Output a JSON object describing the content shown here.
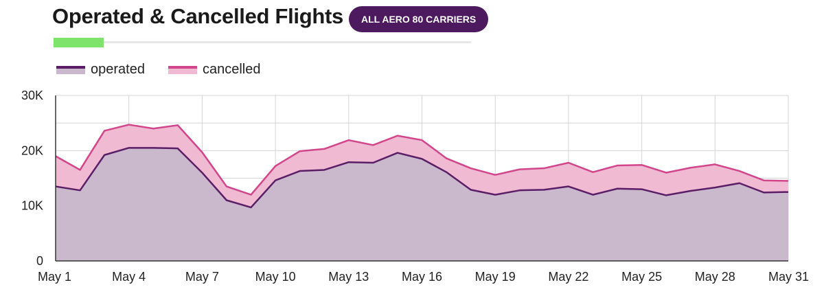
{
  "header": {
    "title": "Operated & Cancelled Flights",
    "badge": "ALL AERO 80 CARRIERS",
    "progress": 0.12
  },
  "colors": {
    "operated_line": "#5a1e66",
    "operated_fill": "#cab8cd",
    "cancelled_line": "#d1458a",
    "cancelled_fill": "#efbad2",
    "badge_bg": "#4e1a5f",
    "progress_fill": "#7ee36a",
    "grid": "#d4d4d4"
  },
  "chart_data": {
    "type": "area",
    "stacked": true,
    "x": [
      "May 1",
      "May 2",
      "May 3",
      "May 4",
      "May 5",
      "May 6",
      "May 7",
      "May 8",
      "May 9",
      "May 10",
      "May 11",
      "May 12",
      "May 13",
      "May 14",
      "May 15",
      "May 16",
      "May 17",
      "May 18",
      "May 19",
      "May 20",
      "May 21",
      "May 22",
      "May 23",
      "May 24",
      "May 25",
      "May 26",
      "May 27",
      "May 28",
      "May 29",
      "May 30",
      "May 31"
    ],
    "x_tick_labels": [
      "May 1",
      "May 4",
      "May 7",
      "May 10",
      "May 13",
      "May 16",
      "May 19",
      "May 22",
      "May 25",
      "May 28",
      "May 31"
    ],
    "y_tick_labels": [
      "0",
      "10K",
      "20K",
      "30K"
    ],
    "ylim": [
      0,
      30000
    ],
    "grid": true,
    "legend_position": "top-left",
    "series": [
      {
        "name": "operated",
        "values": [
          13500,
          12800,
          19200,
          20500,
          20500,
          20400,
          16000,
          11000,
          9700,
          14600,
          16300,
          16500,
          17900,
          17800,
          19600,
          18500,
          16100,
          12900,
          12000,
          12800,
          12900,
          13500,
          12000,
          13100,
          13000,
          11900,
          12700,
          13300,
          14100,
          12400,
          12500
        ]
      },
      {
        "name": "cancelled",
        "values": [
          5500,
          3700,
          4400,
          4200,
          3500,
          4200,
          3700,
          2500,
          2300,
          2600,
          3600,
          3800,
          4000,
          3200,
          3100,
          3400,
          2500,
          3900,
          3600,
          3800,
          3900,
          4300,
          4100,
          4200,
          4400,
          4100,
          4200,
          4200,
          2200,
          2200,
          2000
        ]
      }
    ]
  }
}
